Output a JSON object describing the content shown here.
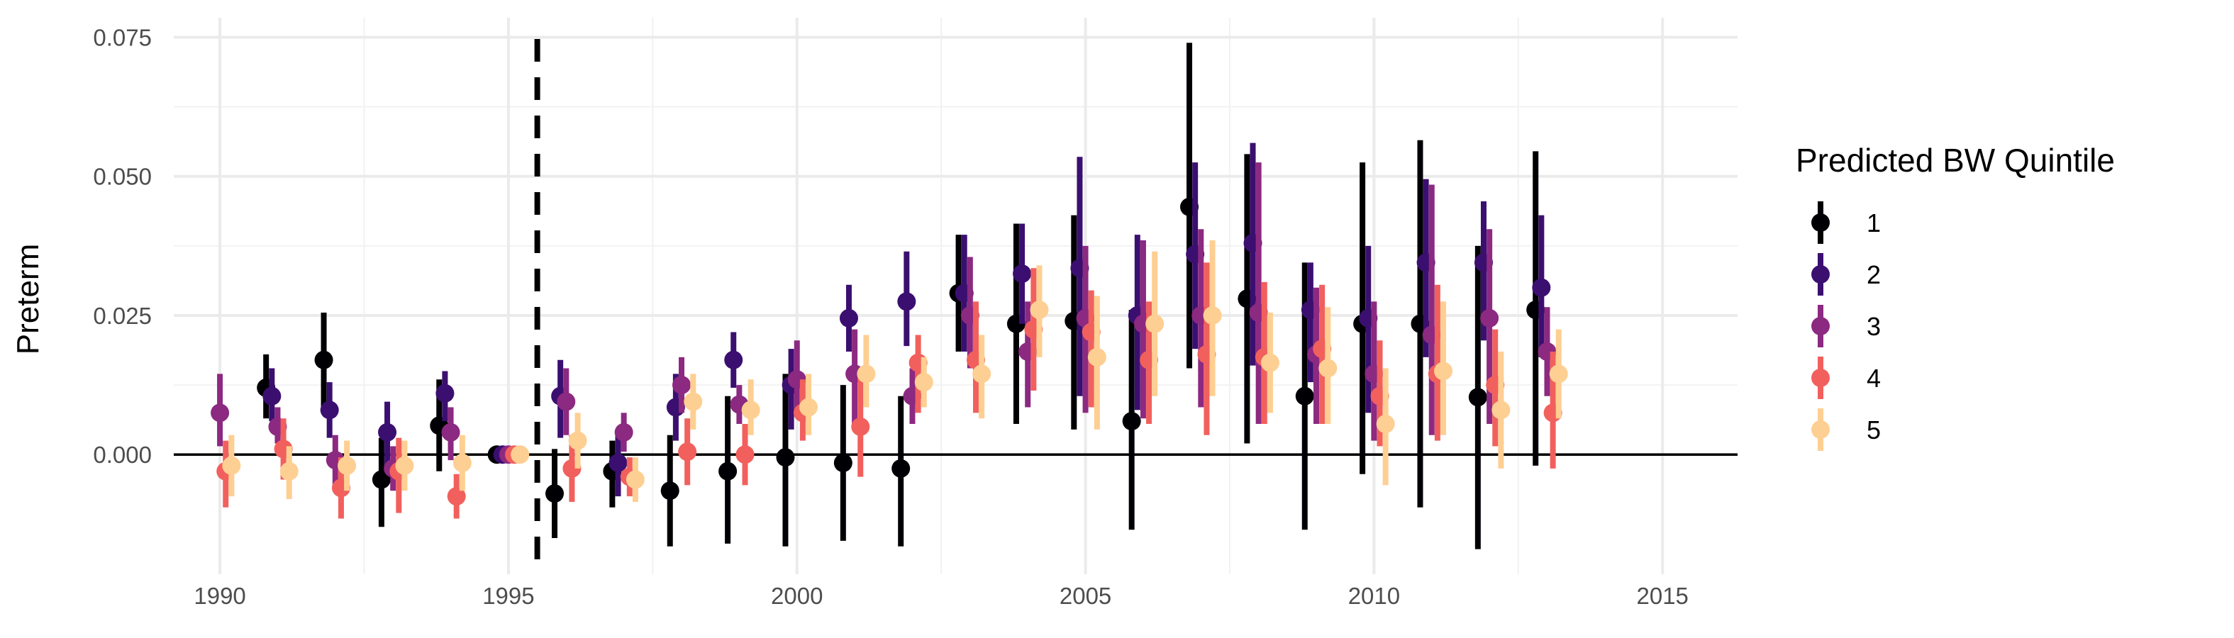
{
  "chart_data": {
    "type": "scatter",
    "title": "",
    "xlabel": "",
    "ylabel": "Preterm",
    "xlim": [
      1989.2,
      2016.3
    ],
    "ylim": [
      -0.0215,
      0.0785
    ],
    "x_ticks": [
      1990,
      1995,
      2000,
      2005,
      2010,
      2015
    ],
    "x_tick_labels": [
      "1990",
      "1995",
      "2000",
      "2005",
      "2010",
      "2015"
    ],
    "y_ticks": [
      0.0,
      0.025,
      0.05,
      0.075
    ],
    "y_tick_labels": [
      "0.000",
      "0.025",
      "0.050",
      "0.075"
    ],
    "grid": true,
    "reference_hline_y": 0,
    "reference_vline_x": 1995.5,
    "legend": {
      "title": "Predicted BW Quintile",
      "position": "right"
    },
    "colors": [
      "#000004",
      "#3b0f70",
      "#8c2981",
      "#f1605d",
      "#fecf92"
    ],
    "series": [
      {
        "name": "1",
        "x": [
          1990,
          1991,
          1992,
          1993,
          1994,
          1995,
          1996,
          1997,
          1998,
          1999,
          2000,
          2001,
          2002,
          2003,
          2004,
          2005,
          2006,
          2007,
          2008,
          2009,
          2010,
          2011,
          2012,
          2013
        ],
        "y": [
          null,
          0.012,
          0.017,
          -0.0045,
          0.0052,
          0,
          -0.007,
          -0.003,
          -0.0065,
          -0.003,
          -0.0005,
          -0.0015,
          -0.0025,
          0.029,
          0.0235,
          0.024,
          0.006,
          0.0445,
          0.028,
          0.0105,
          0.0235,
          0.0235,
          0.0103,
          0.026
        ],
        "ymin": [
          null,
          0.0065,
          0.008,
          -0.013,
          -0.003,
          0,
          -0.015,
          -0.0095,
          -0.0165,
          -0.016,
          -0.0165,
          -0.0155,
          -0.0165,
          0.0185,
          0.0055,
          0.0045,
          -0.0135,
          0.0155,
          0.002,
          -0.0135,
          -0.0035,
          -0.0095,
          -0.017,
          -0.002
        ],
        "ymax": [
          null,
          0.018,
          0.0255,
          0.003,
          0.0135,
          0,
          0.001,
          0.0025,
          0.0035,
          0.0105,
          0.0145,
          0.0125,
          0.0105,
          0.0395,
          0.0415,
          0.043,
          0.026,
          0.074,
          0.054,
          0.0345,
          0.0525,
          0.0565,
          0.0375,
          0.0545
        ]
      },
      {
        "name": "2",
        "x": [
          1990,
          1991,
          1992,
          1993,
          1994,
          1995,
          1996,
          1997,
          1998,
          1999,
          2000,
          2001,
          2002,
          2003,
          2004,
          2005,
          2006,
          2007,
          2008,
          2009,
          2010,
          2011,
          2012,
          2013
        ],
        "y": [
          null,
          0.0105,
          0.008,
          0.004,
          0.011,
          0,
          0.0105,
          -0.0015,
          0.0085,
          0.017,
          0.0125,
          0.0245,
          0.0275,
          0.029,
          0.0325,
          0.0335,
          0.025,
          0.036,
          0.038,
          0.026,
          0.0245,
          0.0345,
          0.0345,
          0.03
        ],
        "ymin": [
          null,
          0.006,
          0.003,
          -0.002,
          0.006,
          0,
          0.003,
          -0.0075,
          0.0025,
          0.012,
          0.0045,
          0.0185,
          0.0195,
          0.0185,
          0.0235,
          0.0105,
          0.008,
          0.019,
          0.016,
          0.013,
          0.0075,
          0.0175,
          0.0205,
          0.0175
        ],
        "ymax": [
          null,
          0.0155,
          0.013,
          0.0095,
          0.015,
          0,
          0.017,
          0.0045,
          0.0145,
          0.022,
          0.019,
          0.0305,
          0.0365,
          0.0395,
          0.0415,
          0.0535,
          0.0395,
          0.0525,
          0.056,
          0.0345,
          0.0375,
          0.0495,
          0.0455,
          0.043
        ]
      },
      {
        "name": "3",
        "x": [
          1990,
          1991,
          1992,
          1993,
          1994,
          1995,
          1996,
          1997,
          1998,
          1999,
          2000,
          2001,
          2002,
          2003,
          2004,
          2005,
          2006,
          2007,
          2008,
          2009,
          2010,
          2011,
          2012,
          2013
        ],
        "y": [
          0.0075,
          0.005,
          -0.001,
          -0.0025,
          0.004,
          0,
          0.0095,
          0.004,
          0.0125,
          0.009,
          0.0135,
          0.0145,
          0.0105,
          0.025,
          0.0185,
          0.0245,
          0.0235,
          0.025,
          0.0255,
          0.018,
          0.0145,
          0.0215,
          0.0245,
          0.0185
        ],
        "ymin": [
          0.0015,
          0.002,
          -0.0055,
          -0.0065,
          -0.001,
          0,
          0.0035,
          0.0005,
          0.0075,
          0.0055,
          0.0075,
          0.0045,
          0.0055,
          0.0155,
          0.0085,
          0.0075,
          0.0065,
          0.0085,
          0.0055,
          0.0055,
          0.0025,
          0.0035,
          0.0055,
          0.0105
        ],
        "ymax": [
          0.0145,
          0.0085,
          0.0035,
          0.0015,
          0.0085,
          0,
          0.0155,
          0.0075,
          0.0175,
          0.0125,
          0.0205,
          0.0225,
          0.0155,
          0.0355,
          0.0275,
          0.0375,
          0.0385,
          0.0405,
          0.0525,
          0.03,
          0.0275,
          0.0485,
          0.0405,
          0.0265
        ]
      },
      {
        "name": "4",
        "x": [
          1990,
          1991,
          1992,
          1993,
          1994,
          1995,
          1996,
          1997,
          1998,
          1999,
          2000,
          2001,
          2002,
          2003,
          2004,
          2005,
          2006,
          2007,
          2008,
          2009,
          2010,
          2011,
          2012,
          2013
        ],
        "y": [
          -0.003,
          0.001,
          -0.006,
          -0.003,
          -0.0075,
          0,
          -0.0025,
          -0.004,
          0.0005,
          0.0,
          0.0075,
          0.005,
          0.0165,
          0.017,
          0.0225,
          0.022,
          0.017,
          0.018,
          0.0175,
          0.019,
          0.0105,
          0.0145,
          0.0125,
          0.0075
        ],
        "ymin": [
          -0.0095,
          -0.0045,
          -0.0115,
          -0.0105,
          -0.0115,
          0,
          -0.0085,
          -0.0075,
          -0.0055,
          -0.0055,
          0.0025,
          -0.004,
          0.0075,
          0.0075,
          0.0115,
          0.0085,
          0.0055,
          0.0035,
          0.0055,
          0.0055,
          0.0015,
          0.0025,
          0.0015,
          -0.0025
        ],
        "ymax": [
          0.0025,
          0.0065,
          -0.0005,
          0.003,
          -0.0035,
          0,
          0.0035,
          -0.0005,
          0.0065,
          0.0055,
          0.0135,
          0.0145,
          0.0215,
          0.0275,
          0.0335,
          0.0295,
          0.0275,
          0.0345,
          0.031,
          0.0305,
          0.0205,
          0.0305,
          0.0225,
          0.0185
        ]
      },
      {
        "name": "5",
        "x": [
          1990,
          1991,
          1992,
          1993,
          1994,
          1995,
          1996,
          1997,
          1998,
          1999,
          2000,
          2001,
          2002,
          2003,
          2004,
          2005,
          2006,
          2007,
          2008,
          2009,
          2010,
          2011,
          2012,
          2013
        ],
        "y": [
          -0.002,
          -0.003,
          -0.002,
          -0.002,
          -0.0015,
          0,
          0.0025,
          -0.0045,
          0.0095,
          0.008,
          0.0085,
          0.0145,
          0.013,
          0.0145,
          0.026,
          0.0175,
          0.0235,
          0.025,
          0.0165,
          0.0155,
          0.0055,
          0.015,
          0.008,
          0.0145
        ],
        "ymin": [
          -0.0075,
          -0.008,
          -0.0065,
          -0.0065,
          -0.0065,
          0,
          -0.0025,
          -0.0085,
          0.0045,
          0.0035,
          0.0035,
          0.0085,
          0.0085,
          0.0065,
          0.0175,
          0.0045,
          0.0105,
          0.0105,
          0.0075,
          0.0055,
          -0.0055,
          0.0035,
          -0.0025,
          0.0065
        ],
        "ymax": [
          0.0035,
          0.0015,
          0.0025,
          0.0025,
          0.0035,
          0,
          0.0075,
          -0.0005,
          0.0145,
          0.0135,
          0.0145,
          0.0215,
          0.0175,
          0.0215,
          0.034,
          0.0285,
          0.0365,
          0.0385,
          0.0255,
          0.0265,
          0.0155,
          0.0275,
          0.0185,
          0.0225
        ]
      }
    ]
  }
}
